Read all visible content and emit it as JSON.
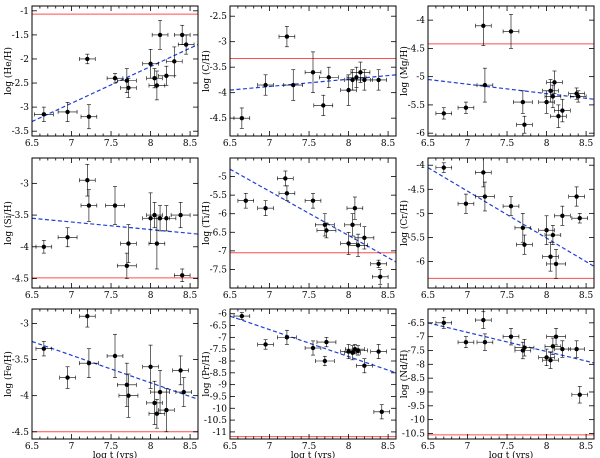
{
  "chart_data": [
    {
      "type": "scatter",
      "ylabel": "log (He/H)",
      "xlabel": "",
      "xlim": [
        6.5,
        8.6
      ],
      "ylim": [
        -3.6,
        -0.9
      ],
      "yticks": [
        -1,
        -1.5,
        -2,
        -2.5,
        -3,
        -3.5
      ],
      "xticks": [
        6.5,
        7,
        7.5,
        8,
        8.5
      ],
      "solar": -1.07,
      "fit": {
        "x": [
          6.5,
          8.6
        ],
        "y": [
          -3.3,
          -1.7
        ]
      },
      "points": [
        {
          "x": 6.65,
          "y": -3.15,
          "xe": 0.12,
          "ye": 0.15
        },
        {
          "x": 6.95,
          "y": -3.1,
          "xe": 0.12,
          "ye": 0.2
        },
        {
          "x": 7.2,
          "y": -2.0,
          "xe": 0.1,
          "ye": 0.1
        },
        {
          "x": 7.22,
          "y": -3.2,
          "xe": 0.1,
          "ye": 0.25
        },
        {
          "x": 7.55,
          "y": -2.4,
          "xe": 0.1,
          "ye": 0.1
        },
        {
          "x": 7.7,
          "y": -2.45,
          "xe": 0.12,
          "ye": 0.25
        },
        {
          "x": 7.72,
          "y": -2.6,
          "xe": 0.1,
          "ye": 0.2
        },
        {
          "x": 8.0,
          "y": -2.1,
          "xe": 0.1,
          "ye": 0.3
        },
        {
          "x": 8.05,
          "y": -2.4,
          "xe": 0.1,
          "ye": 0.2
        },
        {
          "x": 8.08,
          "y": -2.55,
          "xe": 0.1,
          "ye": 0.3
        },
        {
          "x": 8.12,
          "y": -1.5,
          "xe": 0.1,
          "ye": 0.3
        },
        {
          "x": 8.2,
          "y": -2.35,
          "xe": 0.1,
          "ye": 0.2
        },
        {
          "x": 8.3,
          "y": -2.05,
          "xe": 0.1,
          "ye": 0.3
        },
        {
          "x": 8.4,
          "y": -1.5,
          "xe": 0.1,
          "ye": 0.2
        },
        {
          "x": 8.45,
          "y": -1.7,
          "xe": 0.1,
          "ye": 0.2
        }
      ]
    },
    {
      "type": "scatter",
      "ylabel": "log (C/H)",
      "xlabel": "",
      "xlim": [
        6.5,
        8.6
      ],
      "ylim": [
        -4.85,
        -2.3
      ],
      "yticks": [
        -2.5,
        -3,
        -3.5,
        -4,
        -4.5
      ],
      "xticks": [
        6.5,
        7,
        7.5,
        8,
        8.5
      ],
      "solar": -3.33,
      "fit": {
        "x": [
          6.5,
          8.6
        ],
        "y": [
          -3.95,
          -3.65
        ]
      },
      "points": [
        {
          "x": 6.65,
          "y": -4.5,
          "xe": 0.1,
          "ye": 0.2
        },
        {
          "x": 6.95,
          "y": -3.85,
          "xe": 0.1,
          "ye": 0.2
        },
        {
          "x": 7.22,
          "y": -2.9,
          "xe": 0.1,
          "ye": 0.2
        },
        {
          "x": 7.3,
          "y": -3.85,
          "xe": 0.12,
          "ye": 0.3
        },
        {
          "x": 7.55,
          "y": -3.6,
          "xe": 0.1,
          "ye": 0.4
        },
        {
          "x": 7.68,
          "y": -4.25,
          "xe": 0.12,
          "ye": 0.2
        },
        {
          "x": 7.75,
          "y": -3.7,
          "xe": 0.12,
          "ye": 0.2
        },
        {
          "x": 8.0,
          "y": -3.95,
          "xe": 0.1,
          "ye": 0.3
        },
        {
          "x": 8.05,
          "y": -3.75,
          "xe": 0.1,
          "ye": 0.2
        },
        {
          "x": 8.1,
          "y": -3.7,
          "xe": 0.12,
          "ye": 0.2
        },
        {
          "x": 8.15,
          "y": -3.6,
          "xe": 0.12,
          "ye": 0.2
        },
        {
          "x": 8.2,
          "y": -3.75,
          "xe": 0.1,
          "ye": 0.2
        },
        {
          "x": 8.38,
          "y": -3.75,
          "xe": 0.1,
          "ye": 0.2
        }
      ]
    },
    {
      "type": "scatter",
      "ylabel": "log (Mg/H)",
      "xlabel": "",
      "xlim": [
        6.5,
        8.6
      ],
      "ylim": [
        -6.05,
        -3.75
      ],
      "yticks": [
        -4,
        -4.5,
        -5,
        -5.5,
        -6
      ],
      "xticks": [
        6.5,
        7,
        7.5,
        8,
        8.5
      ],
      "solar": -4.42,
      "fit": {
        "x": [
          6.5,
          8.6
        ],
        "y": [
          -5.05,
          -5.4
        ]
      },
      "points": [
        {
          "x": 6.7,
          "y": -5.65,
          "xe": 0.1,
          "ye": 0.1
        },
        {
          "x": 6.98,
          "y": -5.55,
          "xe": 0.1,
          "ye": 0.1
        },
        {
          "x": 7.2,
          "y": -4.1,
          "xe": 0.1,
          "ye": 0.35
        },
        {
          "x": 7.22,
          "y": -5.15,
          "xe": 0.1,
          "ye": 0.3
        },
        {
          "x": 7.55,
          "y": -4.2,
          "xe": 0.1,
          "ye": 0.3
        },
        {
          "x": 7.7,
          "y": -5.45,
          "xe": 0.12,
          "ye": 0.2
        },
        {
          "x": 7.72,
          "y": -5.85,
          "xe": 0.1,
          "ye": 0.15
        },
        {
          "x": 8.0,
          "y": -5.45,
          "xe": 0.1,
          "ye": 0.2
        },
        {
          "x": 8.05,
          "y": -5.25,
          "xe": 0.1,
          "ye": 0.2
        },
        {
          "x": 8.08,
          "y": -5.35,
          "xe": 0.1,
          "ye": 0.2
        },
        {
          "x": 8.1,
          "y": -5.1,
          "xe": 0.1,
          "ye": 0.2
        },
        {
          "x": 8.15,
          "y": -5.7,
          "xe": 0.1,
          "ye": 0.2
        },
        {
          "x": 8.2,
          "y": -5.6,
          "xe": 0.1,
          "ye": 0.2
        },
        {
          "x": 8.38,
          "y": -5.3,
          "xe": 0.1,
          "ye": 0.1
        },
        {
          "x": 8.4,
          "y": -5.35,
          "xe": 0.1,
          "ye": 0.1
        }
      ]
    },
    {
      "type": "scatter",
      "ylabel": "log (Si/H)",
      "xlabel": "",
      "xlim": [
        6.5,
        8.6
      ],
      "ylim": [
        -4.65,
        -2.6
      ],
      "yticks": [
        -3,
        -3.5,
        -4,
        -4.5
      ],
      "xticks": [
        6.5,
        7,
        7.5,
        8,
        8.5
      ],
      "solar": -4.49,
      "fit": {
        "x": [
          6.5,
          8.6
        ],
        "y": [
          -3.55,
          -3.8
        ]
      },
      "points": [
        {
          "x": 6.65,
          "y": -4.0,
          "xe": 0.1,
          "ye": 0.1
        },
        {
          "x": 6.95,
          "y": -3.85,
          "xe": 0.12,
          "ye": 0.15
        },
        {
          "x": 7.2,
          "y": -2.95,
          "xe": 0.1,
          "ye": 0.25
        },
        {
          "x": 7.22,
          "y": -3.35,
          "xe": 0.1,
          "ye": 0.25
        },
        {
          "x": 7.55,
          "y": -3.35,
          "xe": 0.12,
          "ye": 0.3
        },
        {
          "x": 7.7,
          "y": -4.3,
          "xe": 0.12,
          "ye": 0.2
        },
        {
          "x": 7.72,
          "y": -3.95,
          "xe": 0.1,
          "ye": 0.3
        },
        {
          "x": 8.0,
          "y": -3.55,
          "xe": 0.1,
          "ye": 0.4
        },
        {
          "x": 8.05,
          "y": -3.5,
          "xe": 0.1,
          "ye": 0.2
        },
        {
          "x": 8.08,
          "y": -3.95,
          "xe": 0.1,
          "ye": 0.4
        },
        {
          "x": 8.12,
          "y": -3.55,
          "xe": 0.12,
          "ye": 0.2
        },
        {
          "x": 8.2,
          "y": -3.55,
          "xe": 0.12,
          "ye": 0.2
        },
        {
          "x": 8.38,
          "y": -3.5,
          "xe": 0.12,
          "ye": 0.2
        },
        {
          "x": 8.4,
          "y": -4.45,
          "xe": 0.1,
          "ye": 0.1
        }
      ]
    },
    {
      "type": "scatter",
      "ylabel": "log (Ti/H)",
      "xlabel": "",
      "xlim": [
        6.5,
        8.6
      ],
      "ylim": [
        -8.0,
        -4.5
      ],
      "yticks": [
        -5,
        -5.5,
        -6,
        -6.5,
        -7,
        -7.5
      ],
      "xticks": [
        6.5,
        7,
        7.5,
        8,
        8.5
      ],
      "solar": -7.05,
      "fit": {
        "x": [
          6.5,
          8.6
        ],
        "y": [
          -4.8,
          -7.3
        ]
      },
      "points": [
        {
          "x": 6.7,
          "y": -5.65,
          "xe": 0.1,
          "ye": 0.2
        },
        {
          "x": 6.95,
          "y": -5.85,
          "xe": 0.1,
          "ye": 0.2
        },
        {
          "x": 7.2,
          "y": -5.05,
          "xe": 0.1,
          "ye": 0.2
        },
        {
          "x": 7.22,
          "y": -5.45,
          "xe": 0.1,
          "ye": 0.2
        },
        {
          "x": 7.55,
          "y": -5.65,
          "xe": 0.1,
          "ye": 0.2
        },
        {
          "x": 7.7,
          "y": -6.3,
          "xe": 0.12,
          "ye": 0.3
        },
        {
          "x": 7.72,
          "y": -6.45,
          "xe": 0.12,
          "ye": 0.2
        },
        {
          "x": 8.0,
          "y": -6.8,
          "xe": 0.1,
          "ye": 0.3
        },
        {
          "x": 8.05,
          "y": -6.3,
          "xe": 0.1,
          "ye": 0.3
        },
        {
          "x": 8.08,
          "y": -5.85,
          "xe": 0.1,
          "ye": 0.3
        },
        {
          "x": 8.12,
          "y": -6.85,
          "xe": 0.12,
          "ye": 0.3
        },
        {
          "x": 8.2,
          "y": -6.65,
          "xe": 0.12,
          "ye": 0.3
        },
        {
          "x": 8.38,
          "y": -7.35,
          "xe": 0.1,
          "ye": 0.1
        },
        {
          "x": 8.4,
          "y": -7.7,
          "xe": 0.1,
          "ye": 0.2
        }
      ]
    },
    {
      "type": "scatter",
      "ylabel": "log (Cr/H)",
      "xlabel": "",
      "xlim": [
        6.5,
        8.6
      ],
      "ylim": [
        -6.55,
        -3.85
      ],
      "yticks": [
        -4,
        -4.5,
        -5,
        -5.5,
        -6
      ],
      "xticks": [
        6.5,
        7,
        7.5,
        8,
        8.5
      ],
      "solar": -6.35,
      "fit": {
        "x": [
          6.5,
          8.6
        ],
        "y": [
          -4.05,
          -6.1
        ]
      },
      "points": [
        {
          "x": 6.7,
          "y": -4.05,
          "xe": 0.1,
          "ye": 0.1
        },
        {
          "x": 6.98,
          "y": -4.8,
          "xe": 0.1,
          "ye": 0.2
        },
        {
          "x": 7.2,
          "y": -4.15,
          "xe": 0.1,
          "ye": 0.3
        },
        {
          "x": 7.22,
          "y": -4.65,
          "xe": 0.12,
          "ye": 0.3
        },
        {
          "x": 7.55,
          "y": -4.85,
          "xe": 0.1,
          "ye": 0.2
        },
        {
          "x": 7.7,
          "y": -5.3,
          "xe": 0.1,
          "ye": 0.3
        },
        {
          "x": 7.72,
          "y": -5.65,
          "xe": 0.1,
          "ye": 0.2
        },
        {
          "x": 8.0,
          "y": -5.35,
          "xe": 0.1,
          "ye": 0.3
        },
        {
          "x": 8.05,
          "y": -5.9,
          "xe": 0.1,
          "ye": 0.3
        },
        {
          "x": 8.08,
          "y": -5.45,
          "xe": 0.1,
          "ye": 0.2
        },
        {
          "x": 8.12,
          "y": -6.05,
          "xe": 0.12,
          "ye": 0.3
        },
        {
          "x": 8.2,
          "y": -5.05,
          "xe": 0.1,
          "ye": 0.2
        },
        {
          "x": 8.38,
          "y": -4.65,
          "xe": 0.1,
          "ye": 0.2
        },
        {
          "x": 8.42,
          "y": -5.1,
          "xe": 0.1,
          "ye": 0.1
        }
      ]
    },
    {
      "type": "scatter",
      "ylabel": "log (Fe/H)",
      "xlabel": "log t (yrs)",
      "xlim": [
        6.5,
        8.6
      ],
      "ylim": [
        -4.6,
        -2.8
      ],
      "yticks": [
        -3,
        -3.5,
        -4,
        -4.5
      ],
      "xticks": [
        6.5,
        7,
        7.5,
        8,
        8.5
      ],
      "solar": -4.5,
      "fit": {
        "x": [
          6.5,
          8.6
        ],
        "y": [
          -3.25,
          -4.05
        ]
      },
      "points": [
        {
          "x": 6.65,
          "y": -3.35,
          "xe": 0.1,
          "ye": 0.1
        },
        {
          "x": 6.95,
          "y": -3.75,
          "xe": 0.1,
          "ye": 0.15
        },
        {
          "x": 7.2,
          "y": -2.9,
          "xe": 0.1,
          "ye": 0.15
        },
        {
          "x": 7.22,
          "y": -3.55,
          "xe": 0.12,
          "ye": 0.2
        },
        {
          "x": 7.55,
          "y": -3.45,
          "xe": 0.1,
          "ye": 0.3
        },
        {
          "x": 7.7,
          "y": -3.85,
          "xe": 0.12,
          "ye": 0.3
        },
        {
          "x": 7.72,
          "y": -4.0,
          "xe": 0.12,
          "ye": 0.3
        },
        {
          "x": 8.0,
          "y": -3.6,
          "xe": 0.1,
          "ye": 0.3
        },
        {
          "x": 8.05,
          "y": -4.1,
          "xe": 0.1,
          "ye": 0.3
        },
        {
          "x": 8.08,
          "y": -4.25,
          "xe": 0.1,
          "ye": 0.2
        },
        {
          "x": 8.12,
          "y": -3.95,
          "xe": 0.12,
          "ye": 0.3
        },
        {
          "x": 8.2,
          "y": -4.2,
          "xe": 0.1,
          "ye": 0.3
        },
        {
          "x": 8.38,
          "y": -3.65,
          "xe": 0.1,
          "ye": 0.2
        },
        {
          "x": 8.42,
          "y": -3.95,
          "xe": 0.1,
          "ye": 0.2
        }
      ]
    },
    {
      "type": "scatter",
      "ylabel": "log (Pr/H)",
      "xlabel": "log t (yrs)",
      "xlim": [
        6.5,
        8.6
      ],
      "ylim": [
        -11.3,
        -5.8
      ],
      "yticks": [
        -6,
        -6.5,
        -7,
        -7.5,
        -8,
        -8.5,
        -9,
        -9.5,
        -10,
        -10.5,
        -11
      ],
      "xticks": [
        6.5,
        7,
        7.5,
        8,
        8.5
      ],
      "solar": -11.2,
      "fit": {
        "x": [
          6.5,
          8.6
        ],
        "y": [
          -6.1,
          -8.5
        ]
      },
      "points": [
        {
          "x": 6.65,
          "y": -6.1,
          "xe": 0.1,
          "ye": 0.15
        },
        {
          "x": 6.95,
          "y": -7.3,
          "xe": 0.1,
          "ye": 0.2
        },
        {
          "x": 7.22,
          "y": -7.0,
          "xe": 0.12,
          "ye": 0.3
        },
        {
          "x": 7.55,
          "y": -7.45,
          "xe": 0.1,
          "ye": 0.3
        },
        {
          "x": 7.7,
          "y": -8.0,
          "xe": 0.12,
          "ye": 0.2
        },
        {
          "x": 7.72,
          "y": -7.2,
          "xe": 0.12,
          "ye": 0.2
        },
        {
          "x": 8.0,
          "y": -7.6,
          "xe": 0.1,
          "ye": 0.3
        },
        {
          "x": 8.05,
          "y": -7.65,
          "xe": 0.1,
          "ye": 0.3
        },
        {
          "x": 8.08,
          "y": -7.5,
          "xe": 0.12,
          "ye": 0.2
        },
        {
          "x": 8.12,
          "y": -7.55,
          "xe": 0.12,
          "ye": 0.2
        },
        {
          "x": 8.2,
          "y": -8.2,
          "xe": 0.1,
          "ye": 0.3
        },
        {
          "x": 8.38,
          "y": -7.6,
          "xe": 0.1,
          "ye": 0.3
        },
        {
          "x": 8.42,
          "y": -10.15,
          "xe": 0.1,
          "ye": 0.3
        }
      ]
    },
    {
      "type": "scatter",
      "ylabel": "log (Nd/H)",
      "xlabel": "log t (yrs)",
      "xlim": [
        6.5,
        8.6
      ],
      "ylim": [
        -10.7,
        -6.0
      ],
      "yticks": [
        -6.5,
        -7,
        -7.5,
        -8,
        -8.5,
        -9,
        -9.5,
        -10,
        -10.5
      ],
      "xticks": [
        6.5,
        7,
        7.5,
        8,
        8.5
      ],
      "solar": -10.55,
      "fit": {
        "x": [
          6.5,
          8.6
        ],
        "y": [
          -6.5,
          -7.95
        ]
      },
      "points": [
        {
          "x": 6.7,
          "y": -6.5,
          "xe": 0.1,
          "ye": 0.2
        },
        {
          "x": 6.98,
          "y": -7.2,
          "xe": 0.1,
          "ye": 0.2
        },
        {
          "x": 7.2,
          "y": -6.4,
          "xe": 0.1,
          "ye": 0.3
        },
        {
          "x": 7.22,
          "y": -7.2,
          "xe": 0.1,
          "ye": 0.3
        },
        {
          "x": 7.55,
          "y": -7.0,
          "xe": 0.1,
          "ye": 0.3
        },
        {
          "x": 7.7,
          "y": -7.5,
          "xe": 0.1,
          "ye": 0.3
        },
        {
          "x": 7.72,
          "y": -7.4,
          "xe": 0.12,
          "ye": 0.3
        },
        {
          "x": 8.0,
          "y": -7.75,
          "xe": 0.1,
          "ye": 0.3
        },
        {
          "x": 8.05,
          "y": -7.85,
          "xe": 0.1,
          "ye": 0.3
        },
        {
          "x": 8.08,
          "y": -7.35,
          "xe": 0.1,
          "ye": 0.3
        },
        {
          "x": 8.12,
          "y": -7.0,
          "xe": 0.12,
          "ye": 0.3
        },
        {
          "x": 8.2,
          "y": -7.45,
          "xe": 0.1,
          "ye": 0.3
        },
        {
          "x": 8.38,
          "y": -7.45,
          "xe": 0.1,
          "ye": 0.3
        },
        {
          "x": 8.42,
          "y": -9.1,
          "xe": 0.1,
          "ye": 0.3
        }
      ]
    }
  ],
  "colors": {
    "solar_line": "#ff4d4d",
    "fit_line": "#1f3fd6",
    "points": "#000000"
  }
}
